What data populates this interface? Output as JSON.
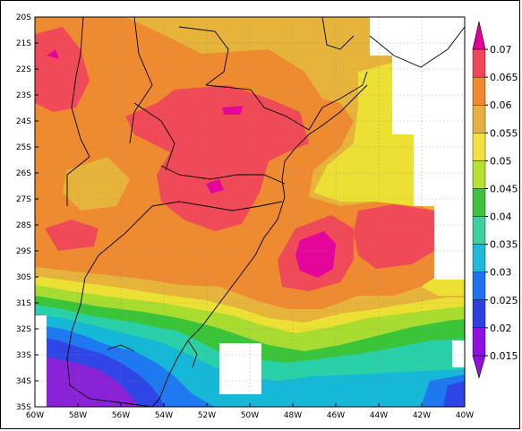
{
  "map": {
    "lat_labels": [
      "20S",
      "21S",
      "22S",
      "23S",
      "24S",
      "25S",
      "26S",
      "27S",
      "28S",
      "29S",
      "30S",
      "31S",
      "32S",
      "33S",
      "34S",
      "35S"
    ],
    "lon_labels": [
      "60W",
      "58W",
      "56W",
      "54W",
      "52W",
      "50W",
      "48W",
      "46W",
      "44W",
      "42W",
      "40W"
    ],
    "lat_range": [
      -35,
      -20
    ],
    "lon_range": [
      -60,
      -40
    ],
    "grid": "dotted"
  },
  "colorbar": {
    "labels": [
      "0.07",
      "0.065",
      "0.06",
      "0.055",
      "0.05",
      "0.045",
      "0.04",
      "0.035",
      "0.03",
      "0.025",
      "0.02",
      "0.015"
    ],
    "colors": [
      "#e2009a",
      "#f0485a",
      "#f08830",
      "#e8b040",
      "#f0e040",
      "#b8e030",
      "#40c040",
      "#40d0a0",
      "#20b8d8",
      "#2070f0",
      "#3040e0",
      "#9010e0"
    ]
  },
  "field_colors": {
    "purple": "#8a22d8",
    "darkblue": "#3045e6",
    "blue": "#1e78ef",
    "cyan": "#16b8d8",
    "teal": "#2ad0a8",
    "green": "#3ac43a",
    "lightgreen": "#a8dc30",
    "yellow": "#ece034",
    "gold": "#e6b43a",
    "orange": "#ee8a30",
    "red": "#f04a58",
    "magenta": "#e4069a"
  }
}
